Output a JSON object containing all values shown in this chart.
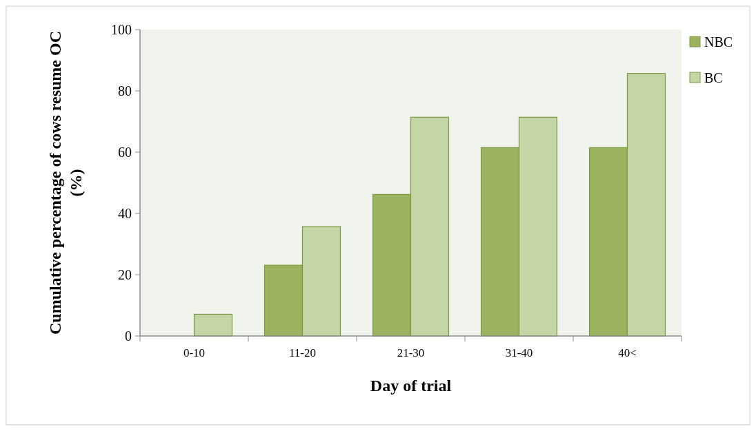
{
  "chart_data": {
    "type": "bar",
    "xlabel": "Day of trial",
    "ylabel": "Cumulative percentage of cows resume OC (%)",
    "categories": [
      "0-10",
      "11-20",
      "21-30",
      "31-40",
      "40<"
    ],
    "series": [
      {
        "name": "NBC",
        "color": "#9bb25e",
        "values": [
          0,
          23.1,
          46.2,
          61.5,
          61.5
        ]
      },
      {
        "name": "BC",
        "color": "#c5d6a6",
        "values": [
          7.1,
          35.7,
          71.4,
          71.4,
          85.7
        ]
      }
    ],
    "ylim": [
      0,
      100
    ],
    "yticks": [
      0,
      20,
      40,
      60,
      80,
      100
    ],
    "grid": false,
    "legend": "right"
  }
}
